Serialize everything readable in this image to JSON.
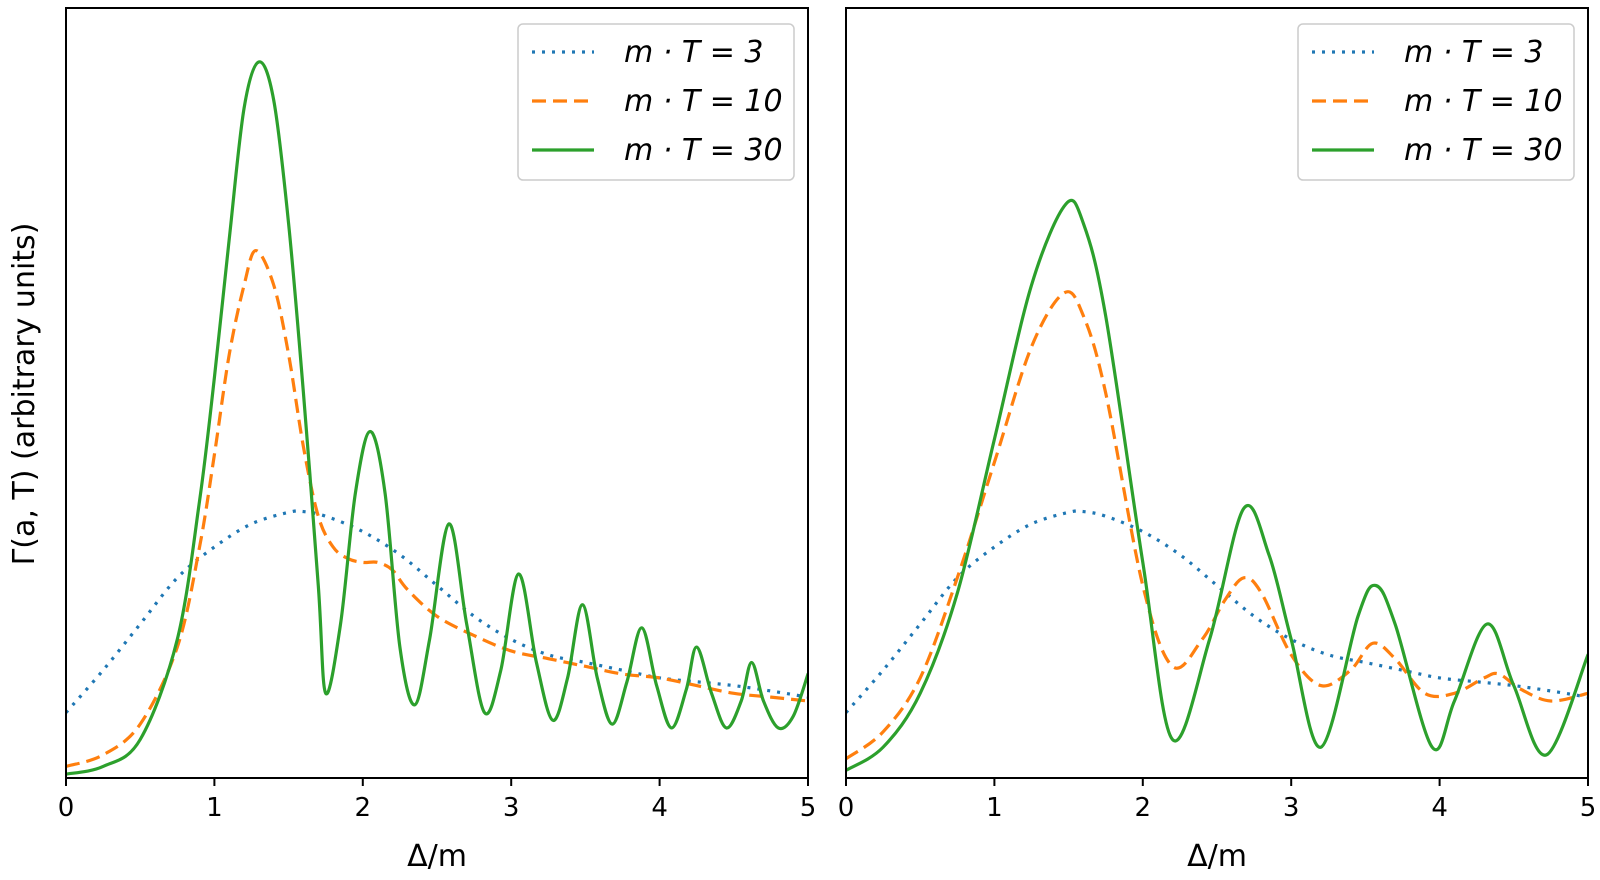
{
  "ylabel": "Γ(a, T) (arbitrary units)",
  "chart_data": [
    {
      "type": "line",
      "xlabel": "Δ/m",
      "ylabel": "Γ(a, T) (arbitrary units)",
      "xlim": [
        0,
        5
      ],
      "ylim": [
        0,
        1
      ],
      "xticks": [
        "0",
        "1",
        "2",
        "3",
        "4",
        "5"
      ],
      "y_tick_labels": "none",
      "grid": false,
      "legend_position": "top-right",
      "series": [
        {
          "name": "m · T = 3",
          "color": "#1f77b4",
          "dash": "dotted",
          "x": [
            0,
            0.25,
            0.5,
            0.75,
            1.0,
            1.25,
            1.5,
            1.6,
            1.75,
            2.0,
            2.25,
            2.5,
            2.75,
            3.0,
            3.25,
            3.5,
            3.75,
            4.0,
            4.25,
            4.5,
            4.75,
            5.0
          ],
          "y": [
            0.085,
            0.14,
            0.2,
            0.26,
            0.3,
            0.33,
            0.345,
            0.346,
            0.34,
            0.32,
            0.29,
            0.25,
            0.21,
            0.18,
            0.16,
            0.15,
            0.14,
            0.13,
            0.125,
            0.12,
            0.113,
            0.105
          ]
        },
        {
          "name": "m · T = 10",
          "color": "#ff7f0e",
          "dash": "dashed",
          "x": [
            0,
            0.25,
            0.5,
            0.75,
            0.9,
            1.0,
            1.1,
            1.2,
            1.28,
            1.4,
            1.5,
            1.6,
            1.7,
            1.8,
            1.9,
            2.0,
            2.1,
            2.2,
            2.3,
            2.5,
            2.75,
            3.0,
            3.25,
            3.5,
            3.75,
            4.0,
            4.25,
            4.5,
            4.75,
            5.0
          ],
          "y": [
            0.015,
            0.03,
            0.07,
            0.17,
            0.3,
            0.42,
            0.55,
            0.64,
            0.685,
            0.64,
            0.55,
            0.43,
            0.34,
            0.3,
            0.285,
            0.28,
            0.28,
            0.27,
            0.245,
            0.21,
            0.185,
            0.165,
            0.155,
            0.145,
            0.135,
            0.13,
            0.12,
            0.11,
            0.105,
            0.1
          ]
        },
        {
          "name": "m · T = 30",
          "color": "#2ca02c",
          "dash": "solid",
          "x": [
            0,
            0.25,
            0.5,
            0.75,
            0.9,
            1.0,
            1.1,
            1.2,
            1.3,
            1.4,
            1.5,
            1.6,
            1.7,
            1.75,
            1.85,
            1.95,
            2.05,
            2.15,
            2.25,
            2.35,
            2.45,
            2.58,
            2.7,
            2.82,
            2.93,
            3.05,
            3.17,
            3.28,
            3.38,
            3.48,
            3.58,
            3.68,
            3.78,
            3.88,
            3.98,
            4.08,
            4.18,
            4.25,
            4.35,
            4.45,
            4.55,
            4.62,
            4.7,
            4.8,
            4.9,
            5.0
          ],
          "y": [
            0.005,
            0.015,
            0.05,
            0.18,
            0.36,
            0.52,
            0.7,
            0.87,
            0.93,
            0.88,
            0.72,
            0.5,
            0.25,
            0.11,
            0.2,
            0.37,
            0.45,
            0.37,
            0.17,
            0.095,
            0.18,
            0.33,
            0.2,
            0.085,
            0.14,
            0.265,
            0.15,
            0.075,
            0.13,
            0.225,
            0.13,
            0.07,
            0.125,
            0.195,
            0.12,
            0.065,
            0.115,
            0.17,
            0.11,
            0.065,
            0.1,
            0.15,
            0.1,
            0.065,
            0.08,
            0.135
          ]
        }
      ]
    },
    {
      "type": "line",
      "xlabel": "Δ/m",
      "xlim": [
        0,
        5
      ],
      "ylim": [
        0,
        1
      ],
      "xticks": [
        "0",
        "1",
        "2",
        "3",
        "4",
        "5"
      ],
      "y_tick_labels": "none",
      "grid": false,
      "legend_position": "top-right",
      "series": [
        {
          "name": "m · T = 3",
          "color": "#1f77b4",
          "dash": "dotted",
          "x": [
            0,
            0.25,
            0.5,
            0.75,
            1.0,
            1.25,
            1.5,
            1.6,
            1.75,
            2.0,
            2.25,
            2.5,
            2.75,
            3.0,
            3.25,
            3.5,
            3.75,
            4.0,
            4.25,
            4.5,
            4.75,
            5.0
          ],
          "y": [
            0.085,
            0.14,
            0.2,
            0.26,
            0.3,
            0.33,
            0.345,
            0.346,
            0.34,
            0.32,
            0.29,
            0.25,
            0.21,
            0.18,
            0.16,
            0.15,
            0.14,
            0.13,
            0.125,
            0.12,
            0.113,
            0.105
          ]
        },
        {
          "name": "m · T = 10",
          "color": "#ff7f0e",
          "dash": "dashed",
          "x": [
            0,
            0.25,
            0.5,
            0.75,
            1.0,
            1.25,
            1.47,
            1.6,
            1.75,
            2.0,
            2.2,
            2.4,
            2.55,
            2.68,
            2.8,
            3.0,
            3.2,
            3.4,
            3.55,
            3.7,
            3.9,
            4.1,
            4.3,
            4.4,
            4.55,
            4.75,
            5.0
          ],
          "y": [
            0.025,
            0.06,
            0.13,
            0.26,
            0.41,
            0.56,
            0.63,
            0.6,
            0.5,
            0.25,
            0.145,
            0.18,
            0.23,
            0.26,
            0.24,
            0.16,
            0.12,
            0.14,
            0.175,
            0.155,
            0.11,
            0.11,
            0.13,
            0.135,
            0.115,
            0.1,
            0.11
          ]
        },
        {
          "name": "m · T = 30",
          "color": "#2ca02c",
          "dash": "solid",
          "x": [
            0,
            0.25,
            0.5,
            0.75,
            1.0,
            1.25,
            1.48,
            1.6,
            1.75,
            2.0,
            2.2,
            2.45,
            2.68,
            2.85,
            3.0,
            3.2,
            3.45,
            3.57,
            3.7,
            3.95,
            4.1,
            4.32,
            4.5,
            4.72,
            5.0
          ],
          "y": [
            0.01,
            0.04,
            0.11,
            0.24,
            0.44,
            0.64,
            0.745,
            0.72,
            0.6,
            0.28,
            0.05,
            0.18,
            0.35,
            0.29,
            0.18,
            0.04,
            0.21,
            0.25,
            0.2,
            0.04,
            0.1,
            0.2,
            0.12,
            0.03,
            0.16
          ]
        }
      ]
    }
  ]
}
